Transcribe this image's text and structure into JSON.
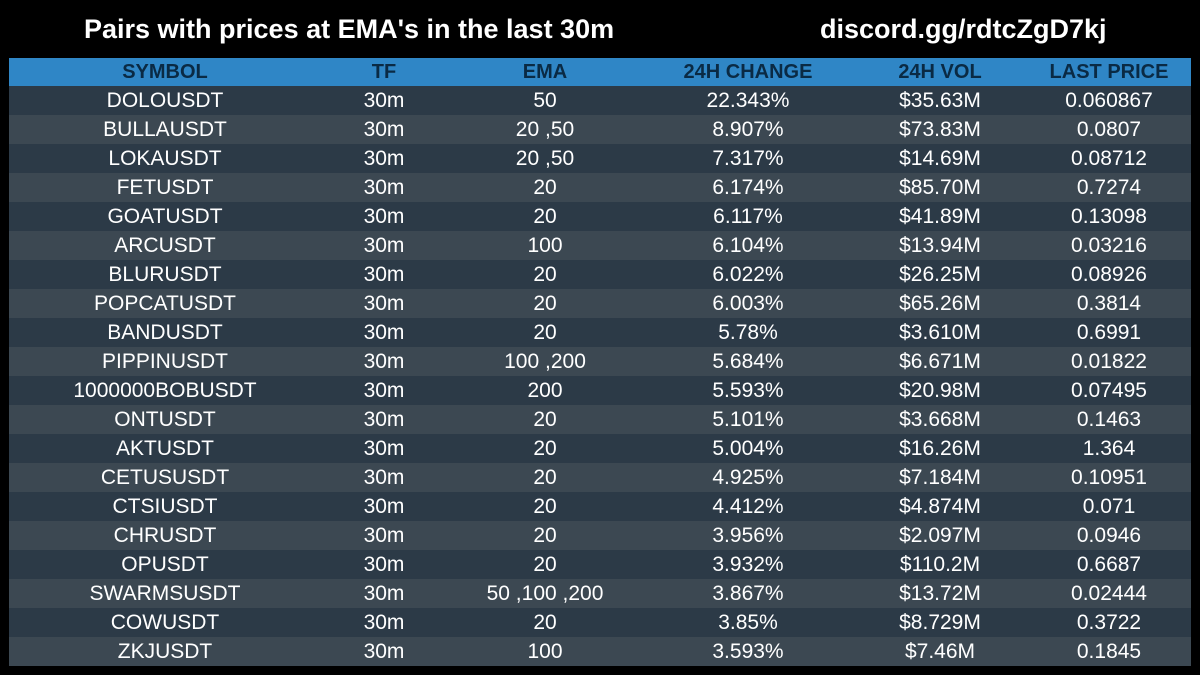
{
  "header": {
    "title": "Pairs with prices at EMA's in the last 30m",
    "discord": "discord.gg/rdtcZgD7kj"
  },
  "colors": {
    "background": "#000000",
    "header_bg": "#2f86c6",
    "header_text": "#0a2a44",
    "row_odd": "#2c3a47",
    "row_even": "#3c4852",
    "text": "#ffffff"
  },
  "table": {
    "columns": [
      "SYMBOL",
      "TF",
      "EMA",
      "24H CHANGE",
      "24H VOL",
      "LAST PRICE"
    ],
    "rows": [
      [
        "DOLOUSDT",
        "30m",
        "50",
        "22.343%",
        "$35.63M",
        "0.060867"
      ],
      [
        "BULLAUSDT",
        "30m",
        "20 ,50",
        "8.907%",
        "$73.83M",
        "0.0807"
      ],
      [
        "LOKAUSDT",
        "30m",
        "20 ,50",
        "7.317%",
        "$14.69M",
        "0.08712"
      ],
      [
        "FETUSDT",
        "30m",
        "20",
        "6.174%",
        "$85.70M",
        "0.7274"
      ],
      [
        "GOATUSDT",
        "30m",
        "20",
        "6.117%",
        "$41.89M",
        "0.13098"
      ],
      [
        "ARCUSDT",
        "30m",
        "100",
        "6.104%",
        "$13.94M",
        "0.03216"
      ],
      [
        "BLURUSDT",
        "30m",
        "20",
        "6.022%",
        "$26.25M",
        "0.08926"
      ],
      [
        "POPCATUSDT",
        "30m",
        "20",
        "6.003%",
        "$65.26M",
        "0.3814"
      ],
      [
        "BANDUSDT",
        "30m",
        "20",
        "5.78%",
        "$3.610M",
        "0.6991"
      ],
      [
        "PIPPINUSDT",
        "30m",
        "100 ,200",
        "5.684%",
        "$6.671M",
        "0.01822"
      ],
      [
        "1000000BOBUSDT",
        "30m",
        "200",
        "5.593%",
        "$20.98M",
        "0.07495"
      ],
      [
        "ONTUSDT",
        "30m",
        "20",
        "5.101%",
        "$3.668M",
        "0.1463"
      ],
      [
        "AKTUSDT",
        "30m",
        "20",
        "5.004%",
        "$16.26M",
        "1.364"
      ],
      [
        "CETUSUSDT",
        "30m",
        "20",
        "4.925%",
        "$7.184M",
        "0.10951"
      ],
      [
        "CTSIUSDT",
        "30m",
        "20",
        "4.412%",
        "$4.874M",
        "0.071"
      ],
      [
        "CHRUSDT",
        "30m",
        "20",
        "3.956%",
        "$2.097M",
        "0.0946"
      ],
      [
        "OPUSDT",
        "30m",
        "20",
        "3.932%",
        "$110.2M",
        "0.6687"
      ],
      [
        "SWARMSUSDT",
        "30m",
        "50 ,100 ,200",
        "3.867%",
        "$13.72M",
        "0.02444"
      ],
      [
        "COWUSDT",
        "30m",
        "20",
        "3.85%",
        "$8.729M",
        "0.3722"
      ],
      [
        "ZKJUSDT",
        "30m",
        "100",
        "3.593%",
        "$7.46M",
        "0.1845"
      ]
    ]
  }
}
